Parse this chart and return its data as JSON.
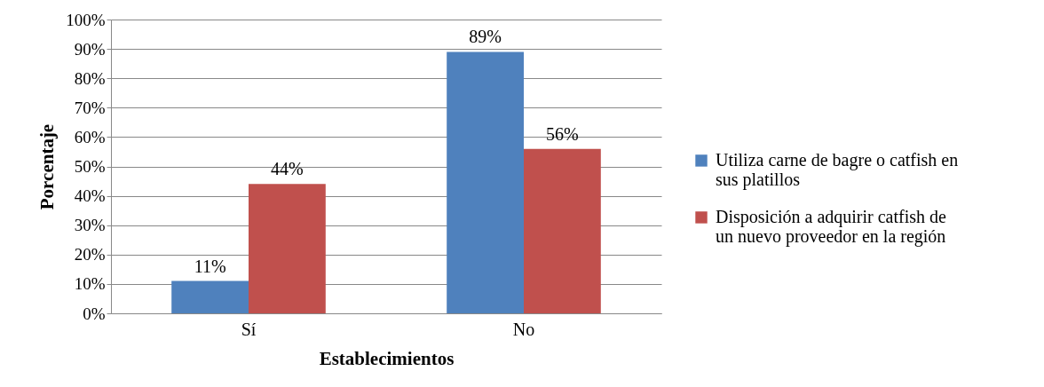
{
  "chart_data": {
    "type": "bar",
    "xlabel": "Establecimientos",
    "ylabel": "Porcentaje",
    "categories": [
      "Sí",
      "No"
    ],
    "series": [
      {
        "name": "Utiliza carne de bagre o catfish en sus platillos",
        "color": "#4f81bd",
        "values": [
          11,
          89
        ],
        "value_labels": [
          "11%",
          "89%"
        ]
      },
      {
        "name": "Disposición a adquirir catfish de un nuevo proveedor en la región",
        "color": "#c0504d",
        "values": [
          44,
          56
        ],
        "value_labels": [
          "44%",
          "56%"
        ]
      }
    ],
    "ylim": [
      0,
      100
    ],
    "yticks": [
      {
        "value": 0,
        "label": "0%"
      },
      {
        "value": 10,
        "label": "10%"
      },
      {
        "value": 20,
        "label": "20%"
      },
      {
        "value": 30,
        "label": "30%"
      },
      {
        "value": 40,
        "label": "40%"
      },
      {
        "value": 50,
        "label": "50%"
      },
      {
        "value": 60,
        "label": "60%"
      },
      {
        "value": 70,
        "label": "70%"
      },
      {
        "value": 80,
        "label": "80%"
      },
      {
        "value": 90,
        "label": "90%"
      },
      {
        "value": 100,
        "label": "100%"
      }
    ],
    "grid": "y",
    "legend": "right"
  }
}
